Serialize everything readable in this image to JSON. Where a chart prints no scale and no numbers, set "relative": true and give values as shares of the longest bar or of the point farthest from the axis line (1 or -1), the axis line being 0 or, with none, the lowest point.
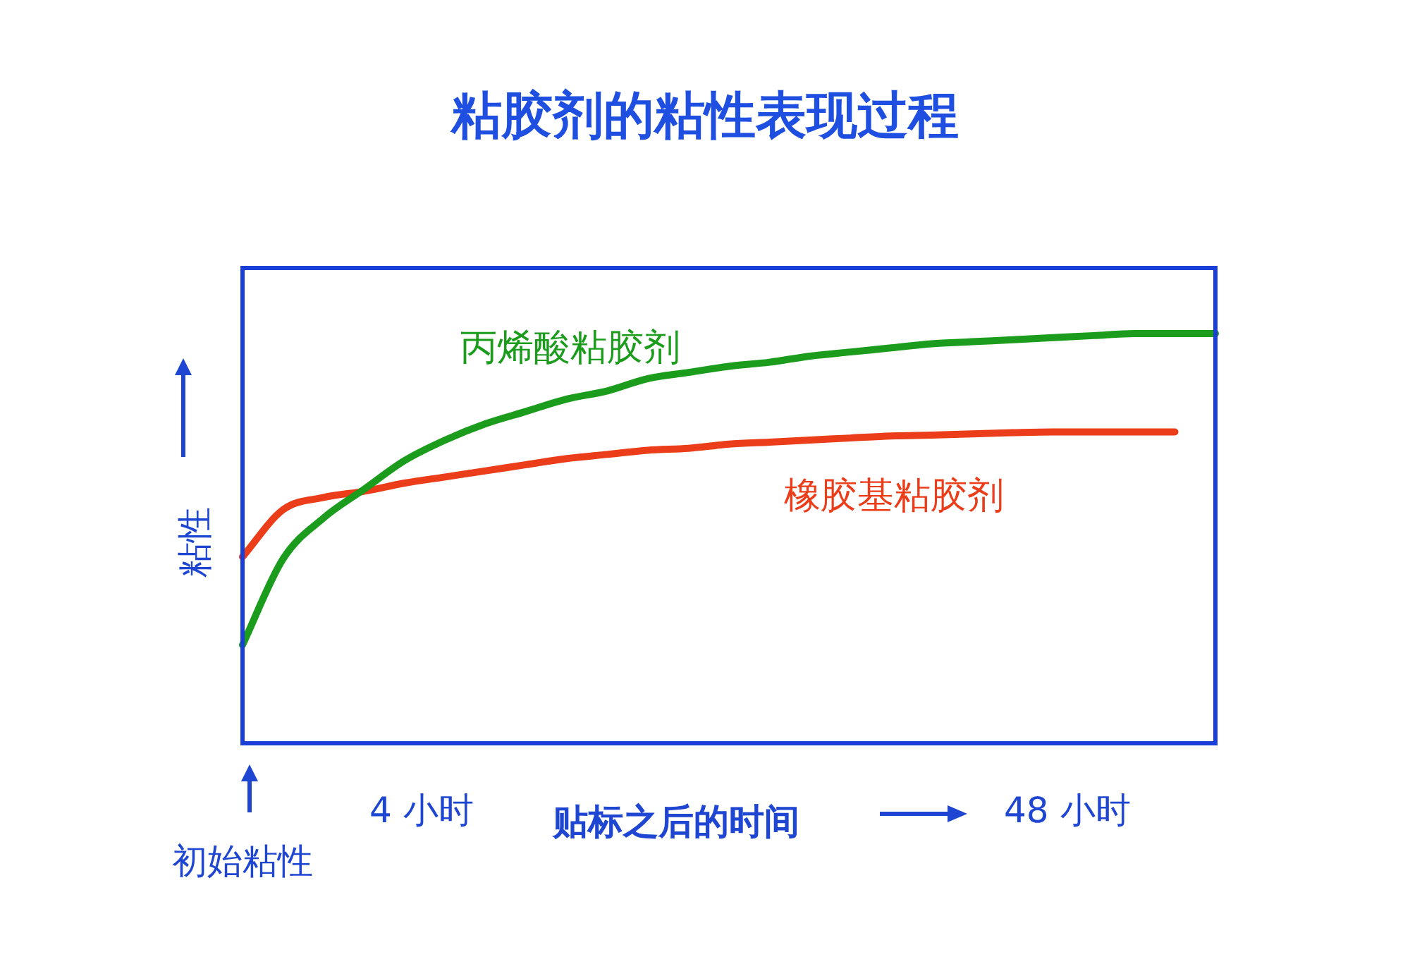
{
  "chart_data": {
    "type": "line",
    "title": "粘胶剂的粘性表现过程",
    "xlabel": "贴标之后的时间",
    "ylabel": "粘性",
    "relative": true,
    "legend": false,
    "marker": "none",
    "line_style": "solid",
    "tick_labels": false,
    "categories": [
      null,
      null,
      null,
      null,
      null,
      null,
      null,
      null,
      null,
      null,
      null,
      null,
      null,
      null,
      null,
      null,
      null,
      null,
      null,
      null,
      null,
      null,
      null,
      null,
      null
    ],
    "series": [
      {
        "name": "丙烯酸粘胶剂",
        "color": "#1c9c1c",
        "values": [
          0.24,
          0.45,
          0.55,
          0.62,
          0.69,
          0.74,
          0.78,
          0.81,
          0.84,
          0.86,
          0.89,
          0.905,
          0.92,
          0.93,
          0.945,
          0.955,
          0.965,
          0.975,
          0.98,
          0.985,
          0.99,
          0.995,
          1,
          1,
          1
        ]
      },
      {
        "name": "橡胶基粘胶剂",
        "color": "#ec3d1a",
        "values": [
          0.455,
          0.57,
          0.6,
          0.615,
          0.635,
          0.65,
          0.665,
          0.68,
          0.695,
          0.705,
          0.715,
          0.72,
          0.73,
          0.735,
          0.74,
          0.745,
          0.75,
          0.752,
          0.755,
          0.758,
          0.76,
          0.76,
          0.76,
          0.76,
          null
        ]
      }
    ],
    "annotations": [
      "初始粘性",
      "4 小时",
      "48 小时"
    ]
  }
}
